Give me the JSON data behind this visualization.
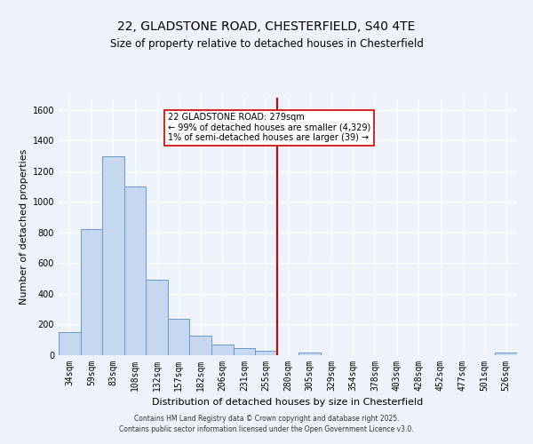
{
  "title": "22, GLADSTONE ROAD, CHESTERFIELD, S40 4TE",
  "subtitle": "Size of property relative to detached houses in Chesterfield",
  "xlabel": "Distribution of detached houses by size in Chesterfield",
  "ylabel": "Number of detached properties",
  "bar_color": "#c5d8f0",
  "bar_edge_color": "#6699cc",
  "categories": [
    "34sqm",
    "59sqm",
    "83sqm",
    "108sqm",
    "132sqm",
    "157sqm",
    "182sqm",
    "206sqm",
    "231sqm",
    "255sqm",
    "280sqm",
    "305sqm",
    "329sqm",
    "354sqm",
    "378sqm",
    "403sqm",
    "428sqm",
    "452sqm",
    "477sqm",
    "501sqm",
    "526sqm"
  ],
  "values": [
    148,
    820,
    1300,
    1100,
    490,
    235,
    130,
    72,
    47,
    28,
    0,
    18,
    0,
    0,
    0,
    0,
    0,
    0,
    0,
    0,
    18
  ],
  "ylim": [
    0,
    1680
  ],
  "yticks": [
    0,
    200,
    400,
    600,
    800,
    1000,
    1200,
    1400,
    1600
  ],
  "vline_color": "#cc0000",
  "annotation_text": "22 GLADSTONE ROAD: 279sqm\n← 99% of detached houses are smaller (4,329)\n1% of semi-detached houses are larger (39) →",
  "footer_line1": "Contains HM Land Registry data © Crown copyright and database right 2025.",
  "footer_line2": "Contains public sector information licensed under the Open Government Licence v3.0.",
  "background_color": "#eef2fb",
  "plot_bg_color": "#eef2fb",
  "grid_color": "#ffffff",
  "title_fontsize": 10,
  "subtitle_fontsize": 8.5,
  "axis_label_fontsize": 8,
  "tick_fontsize": 7,
  "footer_fontsize": 5.5
}
